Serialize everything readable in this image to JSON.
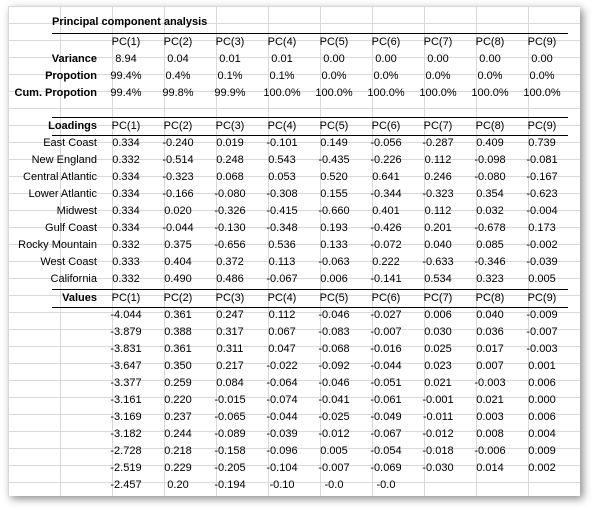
{
  "title": "Principal component analysis",
  "pc_headers": [
    "PC(1)",
    "PC(2)",
    "PC(3)",
    "PC(4)",
    "PC(5)",
    "PC(6)",
    "PC(7)",
    "PC(8)",
    "PC(9)"
  ],
  "summary": [
    {
      "label": "Variance",
      "values": [
        "8.94",
        "0.04",
        "0.01",
        "0.01",
        "0.00",
        "0.00",
        "0.00",
        "0.00",
        "0.00"
      ]
    },
    {
      "label": "Propotion",
      "values": [
        "99.4%",
        "0.4%",
        "0.1%",
        "0.1%",
        "0.0%",
        "0.0%",
        "0.0%",
        "0.0%",
        "0.0%"
      ]
    },
    {
      "label": "Cum. Propotion",
      "values": [
        "99.4%",
        "99.8%",
        "99.9%",
        "100.0%",
        "100.0%",
        "100.0%",
        "100.0%",
        "100.0%",
        "100.0%"
      ]
    }
  ],
  "loadings_label": "Loadings",
  "loadings": [
    {
      "label": "East Coast",
      "values": [
        "0.334",
        "-0.240",
        "0.019",
        "-0.101",
        "0.149",
        "-0.056",
        "-0.287",
        "0.409",
        "0.739"
      ]
    },
    {
      "label": "New England",
      "values": [
        "0.332",
        "-0.514",
        "0.248",
        "0.543",
        "-0.435",
        "-0.226",
        "0.112",
        "-0.098",
        "-0.081"
      ]
    },
    {
      "label": "Central Atlantic",
      "values": [
        "0.334",
        "-0.323",
        "0.068",
        "0.053",
        "0.520",
        "0.641",
        "0.246",
        "-0.080",
        "-0.167"
      ]
    },
    {
      "label": "Lower Atlantic",
      "values": [
        "0.334",
        "-0.166",
        "-0.080",
        "-0.308",
        "0.155",
        "-0.344",
        "-0.323",
        "0.354",
        "-0.623"
      ]
    },
    {
      "label": "Midwest",
      "values": [
        "0.334",
        "0.020",
        "-0.326",
        "-0.415",
        "-0.660",
        "0.401",
        "0.112",
        "0.032",
        "-0.004"
      ]
    },
    {
      "label": "Gulf Coast",
      "values": [
        "0.334",
        "-0.044",
        "-0.130",
        "-0.348",
        "0.193",
        "-0.426",
        "0.201",
        "-0.678",
        "0.173"
      ]
    },
    {
      "label": "Rocky Mountain",
      "values": [
        "0.332",
        "0.375",
        "-0.656",
        "0.536",
        "0.133",
        "-0.072",
        "0.040",
        "0.085",
        "-0.002"
      ]
    },
    {
      "label": "West Coast",
      "values": [
        "0.333",
        "0.404",
        "0.372",
        "0.113",
        "-0.063",
        "0.222",
        "-0.633",
        "-0.346",
        "-0.039"
      ]
    },
    {
      "label": "California",
      "values": [
        "0.332",
        "0.490",
        "0.486",
        "-0.067",
        "0.006",
        "-0.141",
        "0.534",
        "0.323",
        "0.005"
      ]
    }
  ],
  "values_label": "Values",
  "values_rows": [
    [
      "-4.044",
      "0.361",
      "0.247",
      "0.112",
      "-0.046",
      "-0.027",
      "0.006",
      "0.040",
      "-0.009"
    ],
    [
      "-3.879",
      "0.388",
      "0.317",
      "0.067",
      "-0.083",
      "-0.007",
      "0.030",
      "0.036",
      "-0.007"
    ],
    [
      "-3.831",
      "0.361",
      "0.311",
      "0.047",
      "-0.068",
      "-0.016",
      "0.025",
      "0.017",
      "-0.003"
    ],
    [
      "-3.647",
      "0.350",
      "0.217",
      "-0.022",
      "-0.092",
      "-0.044",
      "0.023",
      "0.007",
      "0.001"
    ],
    [
      "-3.377",
      "0.259",
      "0.084",
      "-0.064",
      "-0.046",
      "-0.051",
      "0.021",
      "-0.003",
      "0.006"
    ],
    [
      "-3.161",
      "0.220",
      "-0.015",
      "-0.074",
      "-0.041",
      "-0.061",
      "-0.001",
      "0.021",
      "0.000"
    ],
    [
      "-3.169",
      "0.237",
      "-0.065",
      "-0.044",
      "-0.025",
      "-0.049",
      "-0.011",
      "0.003",
      "0.006"
    ],
    [
      "-3.182",
      "0.244",
      "-0.089",
      "-0.039",
      "-0.012",
      "-0.067",
      "-0.012",
      "0.008",
      "0.004"
    ],
    [
      "-2.728",
      "0.218",
      "-0.158",
      "-0.096",
      "0.005",
      "-0.054",
      "-0.018",
      "-0.006",
      "0.009"
    ],
    [
      "-2.519",
      "0.229",
      "-0.205",
      "-0.104",
      "-0.007",
      "-0.069",
      "-0.030",
      "0.014",
      "0.002"
    ],
    [
      "-2.457",
      "0.20",
      "-0.194",
      "-0.10",
      "-0.0",
      "-0.0",
      "",
      "",
      ""
    ]
  ]
}
